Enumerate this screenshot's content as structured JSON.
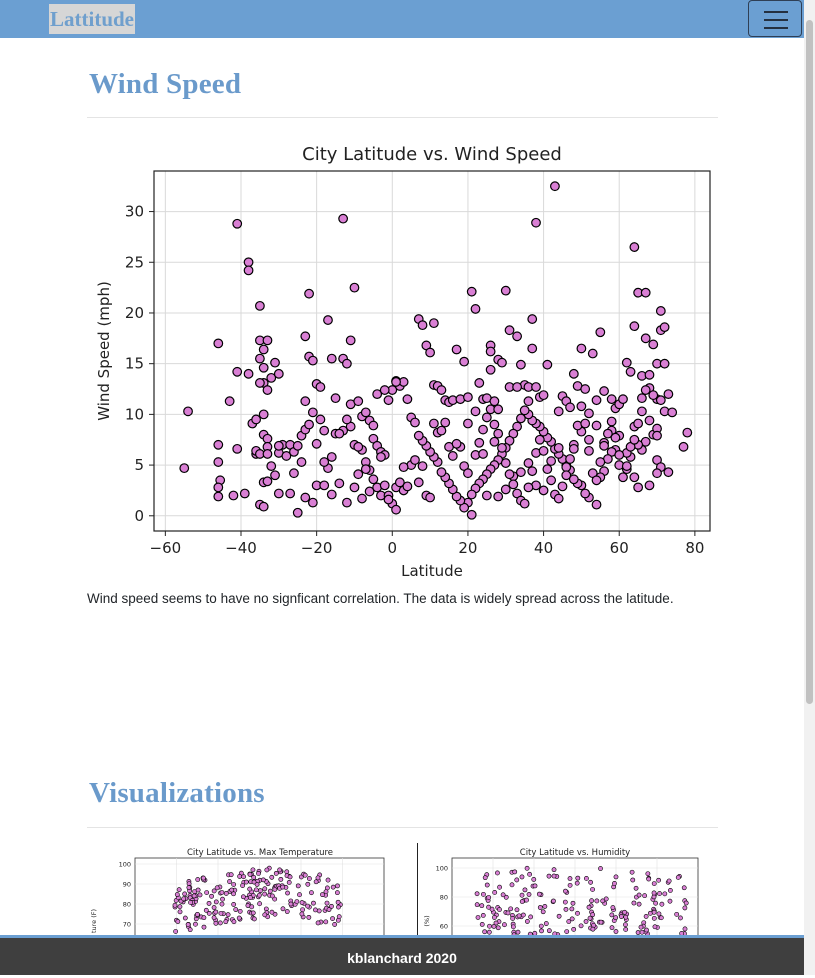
{
  "navbar": {
    "brand": "Lattitude"
  },
  "main": {
    "heading": "Wind Speed",
    "caption": "Wind speed seems to have no signficant correlation. The data is widely spread across the latitude."
  },
  "visualizations": {
    "heading": "Visualizations",
    "thumbnails": [
      {
        "title": "City Latitude vs. Max Temperature",
        "ylabel": "ture (F)",
        "yticks": [
          "100",
          "90",
          "80",
          "70"
        ]
      },
      {
        "title": "City Latitude vs. Humidity",
        "ylabel": "(%)",
        "yticks": [
          "100",
          "80",
          "60"
        ]
      }
    ]
  },
  "footer": {
    "text": "kblanchard 2020"
  },
  "colors": {
    "navbar": "#6b9fd2",
    "heading": "#6a9acb",
    "marker_fill": "#d97fd4",
    "marker_edge": "#000000",
    "footer": "#3f3f3f"
  },
  "chart_data": {
    "type": "scatter",
    "title": "City Latitude vs. Wind Speed",
    "xlabel": "Latitude",
    "ylabel": "Wind Speed (mph)",
    "xlim": [
      -63,
      84
    ],
    "ylim": [
      -1.5,
      34
    ],
    "xticks": [
      -60,
      -40,
      -20,
      0,
      20,
      40,
      60,
      80
    ],
    "yticks": [
      0,
      5,
      10,
      15,
      20,
      25,
      30
    ],
    "grid": true,
    "points": [
      [
        -55,
        4.7
      ],
      [
        -54,
        10.3
      ],
      [
        -46,
        17
      ],
      [
        -46,
        7
      ],
      [
        -46,
        5.3
      ],
      [
        -45.5,
        3.5
      ],
      [
        -46,
        2.8
      ],
      [
        -46,
        1.9
      ],
      [
        -43,
        11.3
      ],
      [
        -42,
        2
      ],
      [
        -41,
        6.6
      ],
      [
        -41,
        14.2
      ],
      [
        -41,
        28.8
      ],
      [
        -39,
        2.2
      ],
      [
        -38,
        25
      ],
      [
        -38,
        24.2
      ],
      [
        -38,
        14
      ],
      [
        -37,
        9.1
      ],
      [
        -36,
        6.1
      ],
      [
        -36,
        9.5
      ],
      [
        -35,
        20.7
      ],
      [
        -35,
        17.3
      ],
      [
        -34,
        16.4
      ],
      [
        -35,
        15.5
      ],
      [
        -34,
        14.6
      ],
      [
        -34,
        13.1
      ],
      [
        -33,
        17.3
      ],
      [
        -33,
        12.4
      ],
      [
        -32,
        13.6
      ],
      [
        -31,
        15.1
      ],
      [
        -30,
        14
      ],
      [
        -35,
        13.1
      ],
      [
        -34,
        10
      ],
      [
        -34,
        8
      ],
      [
        -33,
        7.6
      ],
      [
        -33,
        6.8
      ],
      [
        -31,
        4
      ],
      [
        -30,
        2.2
      ],
      [
        -34,
        3.3
      ],
      [
        -33,
        3.4
      ],
      [
        -35,
        1.1
      ],
      [
        -34,
        0.9
      ],
      [
        -36,
        6.4
      ],
      [
        -35,
        6.1
      ],
      [
        -33,
        6.1
      ],
      [
        -30,
        6.2
      ],
      [
        -29,
        7
      ],
      [
        -27,
        7
      ],
      [
        -26,
        6.3
      ],
      [
        -25,
        6.9
      ],
      [
        -24,
        7.9
      ],
      [
        -23,
        8.5
      ],
      [
        -22,
        9
      ],
      [
        -27,
        2.2
      ],
      [
        -25,
        0.3
      ],
      [
        -23,
        1.8
      ],
      [
        -21,
        1.3
      ],
      [
        -20,
        3
      ],
      [
        -18,
        3
      ],
      [
        -17,
        4.7
      ],
      [
        -16,
        5.8
      ],
      [
        -15,
        8.1
      ],
      [
        -13,
        8.4
      ],
      [
        -11,
        8.8
      ],
      [
        -10,
        7
      ],
      [
        -8,
        6.5
      ],
      [
        -7,
        5.3
      ],
      [
        -6,
        4.5
      ],
      [
        -5,
        3.6
      ],
      [
        -4,
        2.8
      ],
      [
        -3,
        2
      ],
      [
        -2,
        3
      ],
      [
        -1,
        2
      ],
      [
        0,
        1.2
      ],
      [
        1,
        2.8
      ],
      [
        2,
        3.3
      ],
      [
        3,
        2.5
      ],
      [
        4,
        2.9
      ],
      [
        -23,
        17.7
      ],
      [
        -22,
        21.9
      ],
      [
        -22,
        15.7
      ],
      [
        -21,
        15.3
      ],
      [
        -20,
        13
      ],
      [
        -19,
        12.7
      ],
      [
        -17,
        19.3
      ],
      [
        -16,
        15.5
      ],
      [
        -13,
        15.5
      ],
      [
        -12,
        15
      ],
      [
        -11,
        17.3
      ],
      [
        -11,
        11
      ],
      [
        -10,
        22.5
      ],
      [
        -9,
        11.3
      ],
      [
        -13,
        29.3
      ],
      [
        -23,
        11.3
      ],
      [
        -21,
        10.2
      ],
      [
        -19,
        9.5
      ],
      [
        -18,
        8.4
      ],
      [
        -14,
        8.1
      ],
      [
        -12,
        9.5
      ],
      [
        -8,
        9.8
      ],
      [
        -7,
        10.2
      ],
      [
        -6,
        9.4
      ],
      [
        -5,
        7.6
      ],
      [
        -4,
        6.9
      ],
      [
        -3,
        6.3
      ],
      [
        -2,
        6
      ],
      [
        -1,
        11.4
      ],
      [
        0,
        12.4
      ],
      [
        1,
        13.3
      ],
      [
        2,
        12.8
      ],
      [
        3,
        13.2
      ],
      [
        4,
        11.5
      ],
      [
        5,
        9.7
      ],
      [
        6,
        9.2
      ],
      [
        7,
        19.4
      ],
      [
        8,
        18.8
      ],
      [
        9,
        16.8
      ],
      [
        10,
        16.1
      ],
      [
        11,
        19
      ],
      [
        11,
        12.9
      ],
      [
        12,
        12.8
      ],
      [
        13,
        12.4
      ],
      [
        14,
        11.4
      ],
      [
        15,
        11.2
      ],
      [
        16,
        11.4
      ],
      [
        17,
        16.4
      ],
      [
        18,
        11.5
      ],
      [
        19,
        15.2
      ],
      [
        20,
        11.7
      ],
      [
        21,
        22.1
      ],
      [
        22,
        20.4
      ],
      [
        23,
        13.1
      ],
      [
        24,
        11.5
      ],
      [
        25,
        11.6
      ],
      [
        26,
        16.8
      ],
      [
        26,
        16.2
      ],
      [
        28,
        15.4
      ],
      [
        29,
        15.1
      ],
      [
        30,
        22.2
      ],
      [
        31,
        18.3
      ],
      [
        33,
        17.7
      ],
      [
        34,
        14.9
      ],
      [
        35,
        12.9
      ],
      [
        36,
        11.3
      ],
      [
        37,
        19.4
      ],
      [
        38,
        28.9
      ],
      [
        39,
        11.7
      ],
      [
        40,
        11.9
      ],
      [
        41,
        14.9
      ],
      [
        43,
        32.5
      ],
      [
        44,
        10.3
      ],
      [
        45,
        11.8
      ],
      [
        46,
        11.3
      ],
      [
        47,
        10.7
      ],
      [
        48,
        14
      ],
      [
        49,
        12.8
      ],
      [
        50,
        16.5
      ],
      [
        51,
        12.5
      ],
      [
        52,
        10.1
      ],
      [
        53,
        16
      ],
      [
        54,
        11.4
      ],
      [
        55,
        18.1
      ],
      [
        56,
        12.3
      ],
      [
        58,
        11.5
      ],
      [
        59,
        10.6
      ],
      [
        60,
        11
      ],
      [
        61,
        11.5
      ],
      [
        62,
        15.1
      ],
      [
        63,
        14.2
      ],
      [
        64,
        26.5
      ],
      [
        64,
        18.7
      ],
      [
        65,
        22
      ],
      [
        66,
        13.8
      ],
      [
        67,
        22
      ],
      [
        67,
        17.5
      ],
      [
        68,
        12.6
      ],
      [
        69,
        16.9
      ],
      [
        70,
        15
      ],
      [
        71,
        20.2
      ],
      [
        71,
        18.3
      ],
      [
        72,
        18.6
      ],
      [
        72,
        15
      ],
      [
        70,
        11.5
      ],
      [
        71,
        11.4
      ],
      [
        72,
        10.3
      ],
      [
        73,
        12
      ],
      [
        74,
        10.2
      ],
      [
        69,
        8
      ],
      [
        70,
        8.6
      ],
      [
        67,
        7.3
      ],
      [
        66,
        6.5
      ],
      [
        65,
        7
      ],
      [
        64,
        8.8
      ],
      [
        63,
        5.8
      ],
      [
        62,
        6.2
      ],
      [
        70,
        5.5
      ],
      [
        71,
        4.8
      ],
      [
        70,
        4.2
      ],
      [
        73,
        4.3
      ],
      [
        68,
        3
      ],
      [
        65,
        2.8
      ],
      [
        78,
        8.2
      ],
      [
        77,
        6.8
      ],
      [
        60,
        7.9
      ],
      [
        59,
        6.5
      ],
      [
        58,
        6.3
      ],
      [
        57,
        5.6
      ],
      [
        56,
        4.4
      ],
      [
        55,
        3.8
      ],
      [
        54,
        1.1
      ],
      [
        52,
        1.8
      ],
      [
        51,
        2.2
      ],
      [
        50,
        3
      ],
      [
        49,
        3.2
      ],
      [
        48,
        3.6
      ],
      [
        47,
        4.5
      ],
      [
        46,
        5
      ],
      [
        45,
        5.6
      ],
      [
        44,
        6.1
      ],
      [
        43,
        6.6
      ],
      [
        42,
        7.3
      ],
      [
        41,
        7.7
      ],
      [
        40,
        8.3
      ],
      [
        39,
        8.8
      ],
      [
        38,
        9.1
      ],
      [
        37,
        9.4
      ],
      [
        36,
        10
      ],
      [
        35,
        10.4
      ],
      [
        34,
        9.6
      ],
      [
        33,
        8.8
      ],
      [
        32,
        8.1
      ],
      [
        31,
        7.4
      ],
      [
        30,
        6.7
      ],
      [
        29,
        6.1
      ],
      [
        28,
        5.5
      ],
      [
        27,
        5
      ],
      [
        26,
        4.6
      ],
      [
        25,
        4.1
      ],
      [
        24,
        3.6
      ],
      [
        23,
        3.2
      ],
      [
        22,
        2.7
      ],
      [
        21,
        2.1
      ],
      [
        20,
        1.3
      ],
      [
        19,
        0.8
      ],
      [
        18,
        1.5
      ],
      [
        17,
        1.9
      ],
      [
        16,
        2.6
      ],
      [
        15,
        3.2
      ],
      [
        14,
        3.8
      ],
      [
        13,
        4.3
      ],
      [
        12,
        5.3
      ],
      [
        11,
        5.8
      ],
      [
        10,
        6.3
      ],
      [
        9,
        6.9
      ],
      [
        8,
        7.4
      ],
      [
        7,
        7.9
      ],
      [
        21,
        0.1
      ],
      [
        25,
        2
      ],
      [
        28,
        1.9
      ],
      [
        30,
        2.6
      ],
      [
        32,
        3.9
      ],
      [
        34,
        4.3
      ],
      [
        36,
        5.2
      ],
      [
        38,
        3
      ],
      [
        40,
        2.5
      ],
      [
        42,
        5.4
      ],
      [
        44,
        6.7
      ],
      [
        46,
        4.8
      ],
      [
        48,
        7
      ],
      [
        50,
        8.3
      ],
      [
        52,
        7.5
      ],
      [
        54,
        8.9
      ],
      [
        56,
        7.2
      ],
      [
        58,
        8.4
      ],
      [
        60,
        5
      ],
      [
        62,
        4.6
      ],
      [
        64,
        3.8
      ],
      [
        66,
        10.3
      ],
      [
        68,
        9.4
      ],
      [
        70,
        7.9
      ],
      [
        9,
        2
      ],
      [
        7,
        3.3
      ],
      [
        5,
        5
      ],
      [
        3,
        4.8
      ],
      [
        1,
        0.6
      ],
      [
        -1,
        1.6
      ],
      [
        -3,
        5.8
      ],
      [
        -5,
        8.9
      ],
      [
        -8,
        1.7
      ],
      [
        -10,
        2.8
      ],
      [
        -12,
        1.3
      ],
      [
        -14,
        3.2
      ],
      [
        -16,
        2.1
      ],
      [
        -18,
        5.3
      ],
      [
        -20,
        7.1
      ],
      [
        -24,
        5.3
      ],
      [
        -26,
        4.2
      ],
      [
        -28,
        5.9
      ],
      [
        -30,
        6.9
      ],
      [
        -32,
        4.9
      ],
      [
        -15,
        11.6
      ],
      [
        -9,
        6.8
      ],
      [
        -7,
        4.6
      ],
      [
        6,
        5.5
      ],
      [
        8,
        4.9
      ],
      [
        10,
        1.8
      ],
      [
        12,
        8.2
      ],
      [
        14,
        9.2
      ],
      [
        15,
        6.8
      ],
      [
        16,
        5.9
      ],
      [
        18,
        6.8
      ],
      [
        19,
        4.9
      ],
      [
        20,
        4.2
      ],
      [
        22,
        6
      ],
      [
        23,
        7.2
      ],
      [
        24,
        8.5
      ],
      [
        25,
        9.7
      ],
      [
        26,
        10.5
      ],
      [
        27,
        9
      ],
      [
        28,
        8.1
      ],
      [
        29,
        6.7
      ],
      [
        30,
        5.2
      ],
      [
        31,
        4.1
      ],
      [
        32,
        3.1
      ],
      [
        33,
        2.2
      ],
      [
        34,
        1.5
      ],
      [
        35,
        1.2
      ],
      [
        36,
        2.8
      ],
      [
        37,
        4.4
      ],
      [
        38,
        6.2
      ],
      [
        39,
        7.5
      ],
      [
        40,
        6.4
      ],
      [
        41,
        4.6
      ],
      [
        42,
        3.5
      ],
      [
        43,
        2.1
      ],
      [
        44,
        1.7
      ],
      [
        45,
        2.9
      ],
      [
        46,
        4
      ],
      [
        47,
        5.6
      ],
      [
        48,
        6.6
      ],
      [
        49,
        8.9
      ],
      [
        50,
        10.8
      ],
      [
        51,
        9.1
      ],
      [
        52,
        6.4
      ],
      [
        53,
        4.2
      ],
      [
        54,
        3.5
      ],
      [
        55,
        5.3
      ],
      [
        56,
        6.9
      ],
      [
        57,
        8.1
      ],
      [
        58,
        9.3
      ],
      [
        59,
        7.7
      ],
      [
        60,
        6
      ],
      [
        61,
        3.8
      ],
      [
        62,
        4.9
      ],
      [
        63,
        6.8
      ],
      [
        64,
        7.5
      ],
      [
        65,
        9.1
      ],
      [
        66,
        11.6
      ],
      [
        67,
        12.4
      ],
      [
        68,
        13.9
      ],
      [
        69,
        11.9
      ],
      [
        31,
        12.7
      ],
      [
        33,
        12.7
      ],
      [
        36,
        12.7
      ],
      [
        38,
        12.7
      ],
      [
        37,
        16.5
      ],
      [
        28,
        10.5
      ],
      [
        27,
        11.3
      ],
      [
        26,
        14.4
      ],
      [
        -4,
        12
      ],
      [
        -2,
        12.4
      ],
      [
        1,
        13.2
      ],
      [
        -9,
        4.1
      ],
      [
        -6,
        2.4
      ],
      [
        11,
        9.1
      ],
      [
        13,
        8.4
      ],
      [
        24,
        6.1
      ],
      [
        27,
        7.3
      ],
      [
        22,
        10.3
      ],
      [
        17,
        7.1
      ],
      [
        20,
        9.1
      ]
    ]
  }
}
